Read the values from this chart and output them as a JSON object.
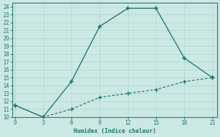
{
  "line1_x": [
    0,
    3,
    6,
    9,
    12,
    15,
    18,
    21
  ],
  "line1_y": [
    11.5,
    10.0,
    14.5,
    21.5,
    23.8,
    23.8,
    17.5,
    15.0
  ],
  "line2_x": [
    0,
    3,
    6,
    9,
    12,
    15,
    18,
    21
  ],
  "line2_y": [
    11.5,
    10.0,
    11.0,
    12.5,
    13.0,
    13.5,
    14.5,
    15.0
  ],
  "line_color": "#1a7a6e",
  "bg_color": "#cce8e4",
  "grid_color": "#b0d8d0",
  "xlabel": "Humidex (Indice chaleur)",
  "xlim": [
    -0.3,
    21.5
  ],
  "ylim": [
    10,
    24.5
  ],
  "xticks": [
    0,
    3,
    6,
    9,
    12,
    15,
    18,
    21
  ],
  "yticks": [
    10,
    11,
    12,
    13,
    14,
    15,
    16,
    17,
    18,
    19,
    20,
    21,
    22,
    23,
    24
  ]
}
